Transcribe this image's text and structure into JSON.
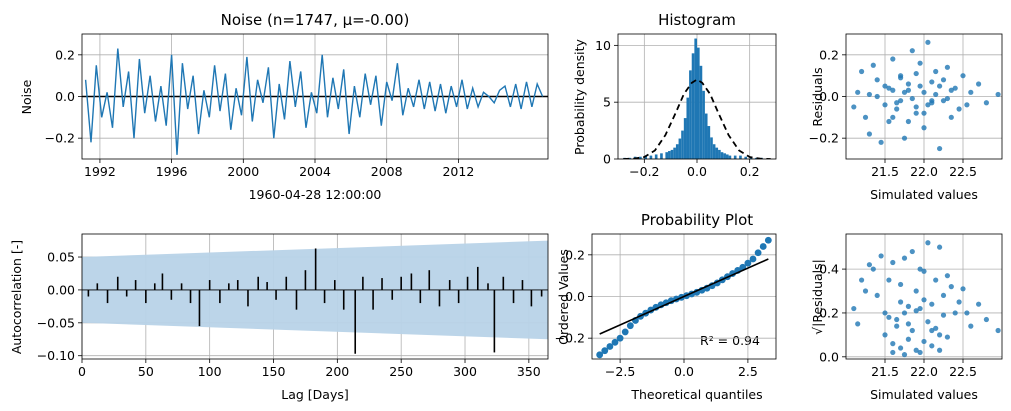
{
  "chart_data": [
    {
      "id": "noise",
      "type": "line",
      "title": "Noise (n=1747, μ=-0.00)",
      "xlabel": "1960-04-28 12:00:00",
      "ylabel": "Noise",
      "x_ticks": [
        "1992",
        "1996",
        "2000",
        "2004",
        "2008",
        "2012"
      ],
      "y_ticks": [
        "0.2",
        "0.0",
        "−0.2"
      ],
      "xlim": [
        1991.0,
        2017.0
      ],
      "ylim": [
        -0.3,
        0.3
      ],
      "grid": true,
      "color": "#1f77b4",
      "zero_line_color": "#000000",
      "series": [
        {
          "x": [
            1991.2,
            1991.5,
            1991.8,
            1992.1,
            1992.4,
            1992.7,
            1993.0,
            1993.3,
            1993.6,
            1993.9,
            1994.2,
            1994.5,
            1994.8,
            1995.1,
            1995.4,
            1995.7,
            1996.0,
            1996.3,
            1996.6,
            1996.9,
            1997.2,
            1997.5,
            1997.8,
            1998.1,
            1998.4,
            1998.7,
            1999.0,
            1999.3,
            1999.6,
            1999.9,
            2000.2,
            2000.5,
            2000.8,
            2001.1,
            2001.4,
            2001.7,
            2002.0,
            2002.3,
            2002.6,
            2002.9,
            2003.2,
            2003.5,
            2003.8,
            2004.1,
            2004.4,
            2004.7,
            2005.0,
            2005.3,
            2005.6,
            2005.9,
            2006.2,
            2006.5,
            2006.8,
            2007.1,
            2007.4,
            2007.7,
            2008.0,
            2008.3,
            2008.6,
            2008.9,
            2009.2,
            2009.5,
            2009.8,
            2010.1,
            2010.4,
            2010.7,
            2011.0,
            2011.3,
            2011.6,
            2011.9,
            2012.2,
            2012.5,
            2012.8,
            2013.1,
            2013.4,
            2013.7,
            2014.0,
            2014.3,
            2014.6,
            2014.9,
            2015.2,
            2015.5,
            2015.8,
            2016.1,
            2016.4,
            2016.7
          ],
          "y": [
            0.08,
            -0.22,
            0.15,
            -0.1,
            0.02,
            -0.15,
            0.23,
            -0.05,
            0.12,
            -0.2,
            0.18,
            -0.08,
            0.1,
            -0.12,
            0.05,
            -0.14,
            0.2,
            -0.28,
            0.16,
            -0.06,
            0.1,
            -0.18,
            0.03,
            -0.1,
            0.15,
            -0.07,
            0.11,
            -0.16,
            0.04,
            -0.09,
            0.19,
            -0.12,
            0.08,
            -0.03,
            0.14,
            -0.2,
            0.06,
            -0.11,
            0.17,
            -0.05,
            0.12,
            -0.15,
            0.02,
            -0.08,
            0.2,
            -0.1,
            0.09,
            -0.06,
            0.13,
            -0.18,
            0.05,
            -0.1,
            0.11,
            -0.04,
            0.1,
            -0.14,
            0.07,
            -0.02,
            0.16,
            -0.09,
            0.04,
            -0.05,
            0.08,
            -0.06,
            0.07,
            -0.07,
            0.06,
            -0.08,
            0.05,
            -0.05,
            0.08,
            -0.06,
            0.04,
            -0.05,
            0.02,
            0.0,
            -0.03,
            0.03,
            0.05,
            -0.05,
            0.06,
            -0.06,
            0.07,
            -0.05,
            0.06,
            0.0
          ]
        }
      ]
    },
    {
      "id": "histogram",
      "type": "bar",
      "title": "Histogram",
      "xlabel": "",
      "ylabel": "Probability density",
      "x_ticks": [
        "−0.2",
        "0.0",
        "0.2"
      ],
      "y_ticks": [
        "0",
        "5",
        "10"
      ],
      "xlim": [
        -0.3,
        0.3
      ],
      "ylim": [
        0,
        11
      ],
      "grid": true,
      "color": "#1f77b4",
      "bin_width": 0.01,
      "bin_left_edges": [
        -0.28,
        -0.26,
        -0.24,
        -0.22,
        -0.2,
        -0.18,
        -0.16,
        -0.14,
        -0.12,
        -0.11,
        -0.1,
        -0.09,
        -0.08,
        -0.07,
        -0.06,
        -0.05,
        -0.04,
        -0.03,
        -0.02,
        -0.01,
        0.0,
        0.01,
        0.02,
        0.03,
        0.04,
        0.05,
        0.06,
        0.07,
        0.08,
        0.09,
        0.1,
        0.11,
        0.12,
        0.14,
        0.16,
        0.18,
        0.2,
        0.22,
        0.24
      ],
      "values": [
        0.1,
        0.1,
        0.2,
        0.2,
        0.3,
        0.3,
        0.4,
        0.5,
        0.6,
        0.7,
        0.8,
        1.0,
        1.3,
        1.8,
        2.5,
        3.6,
        5.4,
        7.8,
        9.3,
        10.6,
        9.8,
        8.2,
        6.0,
        4.0,
        2.9,
        1.9,
        1.3,
        1.0,
        0.8,
        0.6,
        0.5,
        0.4,
        0.3,
        0.3,
        0.3,
        0.2,
        0.2,
        0.1,
        0.1
      ],
      "fit_curve": {
        "style": "dashed",
        "color": "#000000",
        "x": [
          -0.28,
          -0.24,
          -0.2,
          -0.16,
          -0.12,
          -0.08,
          -0.05,
          -0.02,
          0.0,
          0.02,
          0.05,
          0.08,
          0.12,
          0.16,
          0.2,
          0.24,
          0.28
        ],
        "y": [
          0.0,
          0.03,
          0.18,
          0.75,
          2.1,
          4.1,
          5.7,
          6.7,
          7.0,
          6.7,
          5.7,
          4.1,
          2.1,
          0.75,
          0.18,
          0.03,
          0.0
        ]
      }
    },
    {
      "id": "resid_vs_sim",
      "type": "scatter",
      "title": "",
      "xlabel": "Simulated values",
      "ylabel": "Residuals",
      "x_ticks": [
        "21.5",
        "22.0",
        "22.5"
      ],
      "y_ticks": [
        "0.2",
        "0.0",
        "−0.2"
      ],
      "xlim": [
        21.0,
        23.0
      ],
      "ylim": [
        -0.3,
        0.3
      ],
      "grid": true,
      "color": "#1f77b4",
      "series": [
        {
          "x": [
            21.1,
            21.15,
            21.2,
            21.25,
            21.3,
            21.35,
            21.4,
            21.45,
            21.5,
            21.55,
            21.6,
            21.65,
            21.7,
            21.75,
            21.8,
            21.85,
            21.9,
            21.95,
            22.0,
            22.05,
            22.1,
            22.15,
            22.2,
            22.25,
            22.3,
            22.35,
            22.4,
            22.45,
            22.5,
            22.55,
            22.6,
            22.7,
            22.8,
            22.95,
            21.3,
            21.5,
            21.6,
            21.7,
            21.8,
            21.9,
            22.0,
            22.1,
            22.2,
            22.3,
            21.4,
            21.55,
            21.65,
            21.75,
            21.85,
            21.95,
            22.05,
            22.15,
            22.25,
            22.35,
            21.6,
            21.7,
            21.8,
            21.9,
            22.0,
            22.1
          ],
          "y": [
            -0.05,
            0.02,
            0.12,
            -0.1,
            -0.18,
            0.15,
            0.08,
            -0.22,
            0.05,
            -0.12,
            0.18,
            -0.03,
            0.1,
            -0.2,
            0.03,
            0.22,
            -0.08,
            0.16,
            -0.15,
            0.26,
            -0.02,
            0.12,
            -0.25,
            0.08,
            0.14,
            -0.1,
            0.04,
            -0.06,
            0.1,
            -0.04,
            0.02,
            0.06,
            -0.03,
            0.01,
            0.01,
            -0.04,
            0.03,
            -0.02,
            0.06,
            -0.05,
            0.02,
            -0.03,
            0.05,
            -0.01,
            0.0,
            0.04,
            -0.06,
            0.02,
            -0.01,
            0.05,
            -0.04,
            0.01,
            -0.02,
            0.03,
            -0.1,
            0.09,
            -0.12,
            0.11,
            -0.08,
            0.07
          ]
        }
      ]
    },
    {
      "id": "acf",
      "type": "bar",
      "title": "",
      "xlabel": "Lag [Days]",
      "ylabel": "Autocorrelation [-]",
      "x_ticks": [
        "0",
        "50",
        "100",
        "150",
        "200",
        "250",
        "300",
        "350"
      ],
      "y_ticks": [
        "0.05",
        "0.00",
        "−0.05",
        "−0.10"
      ],
      "xlim": [
        0,
        365
      ],
      "ylim": [
        -0.105,
        0.085
      ],
      "grid": true,
      "bar_color": "#000000",
      "band_color": "#b8d3e8",
      "confidence_band_half_width_start": 0.05,
      "confidence_band_half_width_end": 0.075,
      "lags": [
        5,
        12,
        20,
        28,
        35,
        42,
        50,
        57,
        63,
        70,
        78,
        85,
        92,
        100,
        108,
        115,
        122,
        130,
        138,
        145,
        152,
        160,
        168,
        175,
        183,
        190,
        198,
        205,
        214,
        220,
        228,
        235,
        243,
        250,
        258,
        265,
        272,
        280,
        288,
        295,
        302,
        310,
        318,
        323,
        330,
        338,
        345,
        352,
        360
      ],
      "values": [
        -0.01,
        0.01,
        -0.02,
        0.02,
        -0.01,
        0.015,
        -0.02,
        0.01,
        0.025,
        -0.015,
        0.01,
        -0.02,
        -0.055,
        0.015,
        -0.02,
        0.01,
        0.015,
        -0.025,
        0.02,
        0.012,
        -0.015,
        0.02,
        -0.03,
        0.03,
        0.063,
        -0.02,
        0.015,
        -0.03,
        -0.097,
        0.02,
        -0.03,
        0.018,
        -0.015,
        0.02,
        0.025,
        -0.02,
        0.03,
        -0.025,
        0.015,
        -0.02,
        0.02,
        0.035,
        0.01,
        -0.095,
        0.02,
        -0.02,
        0.015,
        -0.025,
        -0.01
      ]
    },
    {
      "id": "probplot",
      "type": "scatter",
      "title": "Probability Plot",
      "xlabel": "Theoretical quantiles",
      "ylabel": "Ordered Values",
      "x_ticks": [
        "−2.5",
        "0.0",
        "2.5"
      ],
      "y_ticks": [
        "0.2",
        "0.0",
        "−0.2"
      ],
      "xlim": [
        -3.6,
        3.6
      ],
      "ylim": [
        -0.3,
        0.3
      ],
      "grid": true,
      "color": "#1f77b4",
      "annotation": "R² = 0.94",
      "fit_line": {
        "x": [
          -3.3,
          3.3
        ],
        "y": [
          -0.18,
          0.18
        ],
        "color": "#000000"
      },
      "series": [
        {
          "x": [
            -3.3,
            -3.1,
            -2.9,
            -2.7,
            -2.5,
            -2.3,
            -2.1,
            -1.9,
            -1.7,
            -1.5,
            -1.3,
            -1.1,
            -0.9,
            -0.7,
            -0.5,
            -0.3,
            -0.1,
            0.1,
            0.3,
            0.5,
            0.7,
            0.9,
            1.1,
            1.3,
            1.5,
            1.7,
            1.9,
            2.1,
            2.3,
            2.5,
            2.7,
            2.9,
            3.1,
            3.3
          ],
          "y": [
            -0.28,
            -0.26,
            -0.24,
            -0.22,
            -0.2,
            -0.17,
            -0.14,
            -0.115,
            -0.095,
            -0.08,
            -0.065,
            -0.052,
            -0.04,
            -0.03,
            -0.02,
            -0.012,
            -0.004,
            0.004,
            0.012,
            0.02,
            0.03,
            0.04,
            0.052,
            0.065,
            0.08,
            0.095,
            0.11,
            0.125,
            0.14,
            0.16,
            0.18,
            0.21,
            0.24,
            0.27
          ]
        }
      ]
    },
    {
      "id": "scale_location",
      "type": "scatter",
      "title": "",
      "xlabel": "Simulated values",
      "ylabel": "√|Residuals|",
      "x_ticks": [
        "21.5",
        "22.0",
        "22.5"
      ],
      "y_ticks": [
        "0.4",
        "0.2",
        "0.0"
      ],
      "xlim": [
        21.0,
        23.0
      ],
      "ylim": [
        -0.01,
        0.56
      ],
      "grid": true,
      "color": "#1f77b4",
      "series": [
        {
          "x": [
            21.1,
            21.15,
            21.2,
            21.25,
            21.3,
            21.35,
            21.4,
            21.45,
            21.5,
            21.55,
            21.6,
            21.65,
            21.7,
            21.75,
            21.8,
            21.85,
            21.9,
            21.95,
            22.0,
            22.05,
            22.1,
            22.15,
            22.2,
            22.25,
            22.3,
            22.35,
            22.4,
            22.45,
            22.5,
            22.55,
            22.6,
            22.7,
            22.8,
            22.95,
            21.5,
            21.6,
            21.7,
            21.8,
            21.9,
            22.0,
            22.1,
            22.2,
            22.3,
            21.55,
            21.65,
            21.75,
            21.85,
            21.95,
            22.05,
            22.15,
            22.25,
            21.7,
            21.8,
            21.9,
            22.0,
            22.1,
            21.6,
            21.75,
            21.95,
            22.2
          ],
          "y": [
            0.22,
            0.15,
            0.35,
            0.3,
            0.42,
            0.4,
            0.28,
            0.46,
            0.2,
            0.35,
            0.43,
            0.17,
            0.33,
            0.45,
            0.15,
            0.48,
            0.3,
            0.4,
            0.39,
            0.52,
            0.12,
            0.35,
            0.5,
            0.28,
            0.37,
            0.32,
            0.2,
            0.25,
            0.31,
            0.2,
            0.14,
            0.24,
            0.17,
            0.12,
            0.1,
            0.06,
            0.04,
            0.08,
            0.03,
            0.07,
            0.05,
            0.1,
            0.09,
            0.18,
            0.14,
            0.2,
            0.12,
            0.22,
            0.16,
            0.13,
            0.19,
            0.25,
            0.23,
            0.21,
            0.26,
            0.24,
            0.02,
            0.01,
            0.02,
            0.03
          ]
        }
      ]
    }
  ]
}
